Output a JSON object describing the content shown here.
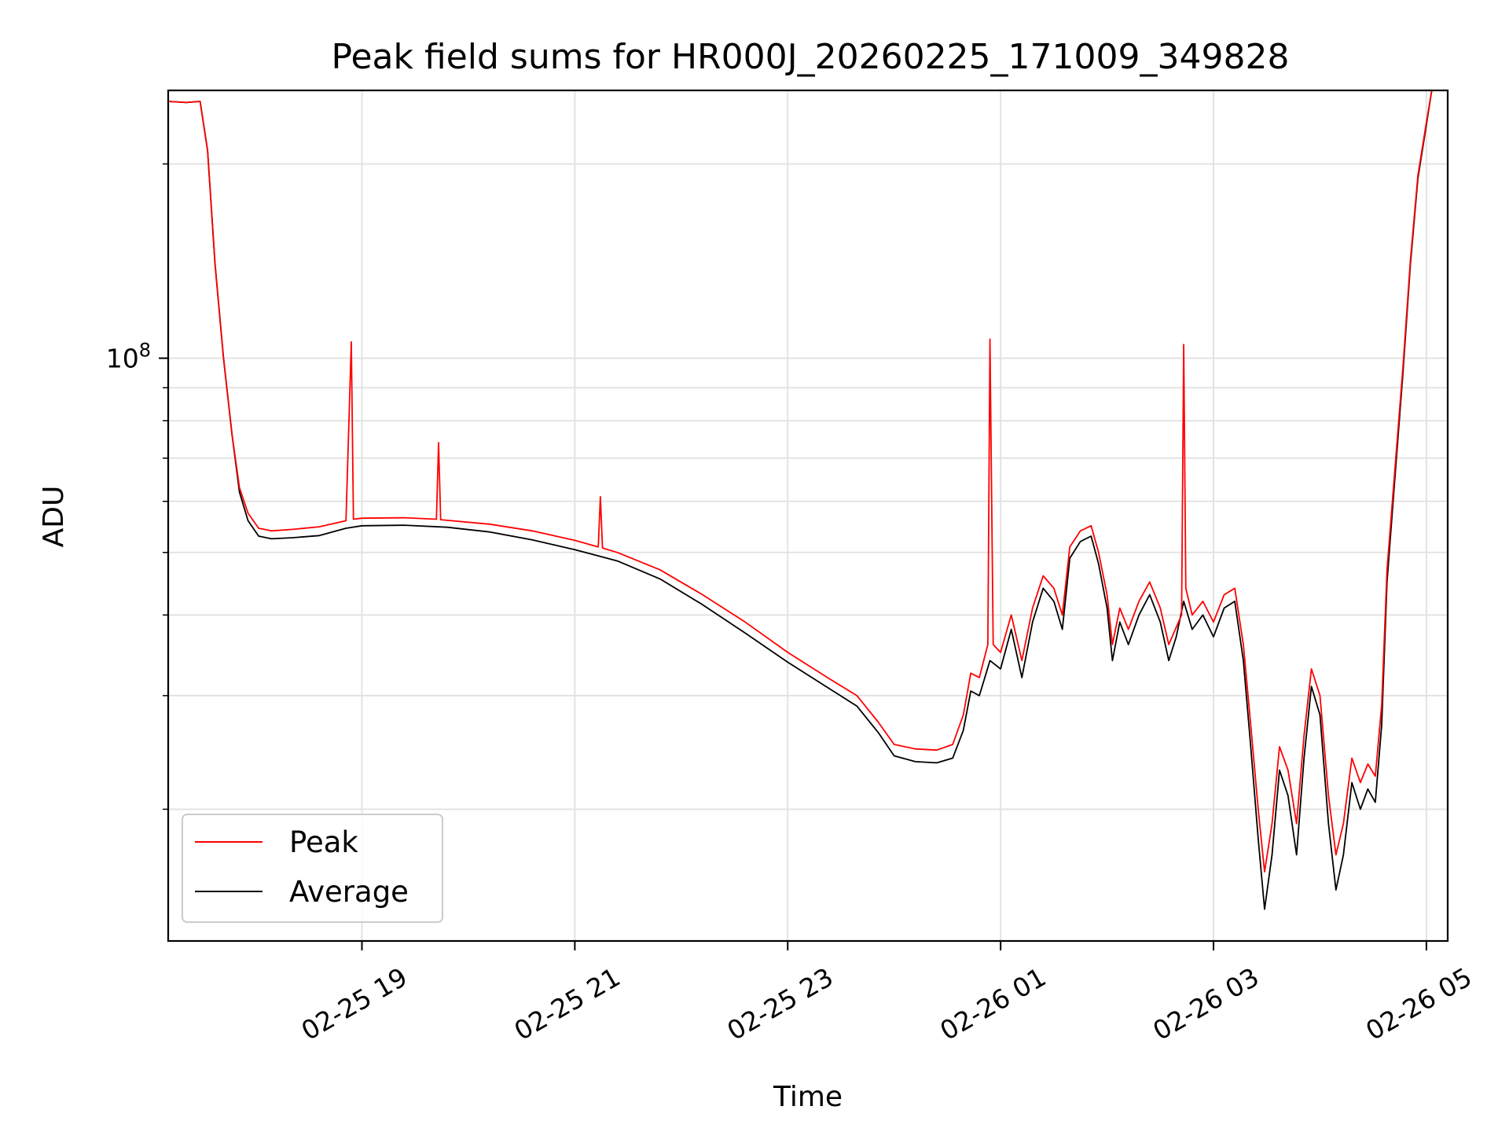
{
  "chart_data": {
    "type": "line",
    "title": "Peak field sums for HR000J_20260225_171009_349828",
    "xlabel": "Time",
    "ylabel": "ADU",
    "y_scale": "log",
    "ylim": [
      12500000,
      260000000
    ],
    "x_range_hours": [
      17.18,
      29.2
    ],
    "grid": true,
    "legend_position": "lower-left",
    "x_ticks": [
      {
        "hour": 19,
        "label": "02-25 19"
      },
      {
        "hour": 21,
        "label": "02-25 21"
      },
      {
        "hour": 23,
        "label": "02-25 23"
      },
      {
        "hour": 25,
        "label": "02-26 01"
      },
      {
        "hour": 27,
        "label": "02-26 03"
      },
      {
        "hour": 29,
        "label": "02-26 05"
      }
    ],
    "y_major_ticks": [
      {
        "value": 100000000,
        "base": "10",
        "exponent": "8"
      }
    ],
    "y_minor_ticks": [
      20000000,
      30000000,
      40000000,
      50000000,
      60000000,
      70000000,
      80000000,
      90000000,
      200000000
    ],
    "series": [
      {
        "name": "Average",
        "color": "#000000",
        "points": [
          [
            17.18,
            250000000
          ],
          [
            17.35,
            249000000
          ],
          [
            17.48,
            250000000
          ],
          [
            17.55,
            210000000
          ],
          [
            17.62,
            140000000
          ],
          [
            17.7,
            100000000
          ],
          [
            17.78,
            76000000
          ],
          [
            17.85,
            62000000
          ],
          [
            17.93,
            56000000
          ],
          [
            18.03,
            53000000
          ],
          [
            18.15,
            52500000
          ],
          [
            18.35,
            52700000
          ],
          [
            18.6,
            53100000
          ],
          [
            18.85,
            54500000
          ],
          [
            19.0,
            55000000
          ],
          [
            19.4,
            55100000
          ],
          [
            19.8,
            54700000
          ],
          [
            20.2,
            53800000
          ],
          [
            20.6,
            52300000
          ],
          [
            21.0,
            50500000
          ],
          [
            21.4,
            48500000
          ],
          [
            21.8,
            45500000
          ],
          [
            22.2,
            41500000
          ],
          [
            22.6,
            37500000
          ],
          [
            23.0,
            33800000
          ],
          [
            23.4,
            30700000
          ],
          [
            23.65,
            28900000
          ],
          [
            23.85,
            26300000
          ],
          [
            24.0,
            24200000
          ],
          [
            24.2,
            23700000
          ],
          [
            24.4,
            23600000
          ],
          [
            24.55,
            24000000
          ],
          [
            24.65,
            26500000
          ],
          [
            24.72,
            30500000
          ],
          [
            24.8,
            30000000
          ],
          [
            24.9,
            34000000
          ],
          [
            25.0,
            33000000
          ],
          [
            25.1,
            38000000
          ],
          [
            25.2,
            32000000
          ],
          [
            25.3,
            39000000
          ],
          [
            25.4,
            44000000
          ],
          [
            25.5,
            42000000
          ],
          [
            25.58,
            38000000
          ],
          [
            25.65,
            49000000
          ],
          [
            25.75,
            52000000
          ],
          [
            25.85,
            53000000
          ],
          [
            25.92,
            48000000
          ],
          [
            26.0,
            41000000
          ],
          [
            26.05,
            34000000
          ],
          [
            26.12,
            39000000
          ],
          [
            26.2,
            36000000
          ],
          [
            26.3,
            40000000
          ],
          [
            26.4,
            43000000
          ],
          [
            26.5,
            39000000
          ],
          [
            26.58,
            34000000
          ],
          [
            26.65,
            37000000
          ],
          [
            26.72,
            42000000
          ],
          [
            26.8,
            38000000
          ],
          [
            26.9,
            40000000
          ],
          [
            27.0,
            37000000
          ],
          [
            27.1,
            41000000
          ],
          [
            27.2,
            42000000
          ],
          [
            27.28,
            34000000
          ],
          [
            27.35,
            25000000
          ],
          [
            27.42,
            18000000
          ],
          [
            27.48,
            14000000
          ],
          [
            27.55,
            17000000
          ],
          [
            27.62,
            23000000
          ],
          [
            27.7,
            21000000
          ],
          [
            27.78,
            17000000
          ],
          [
            27.85,
            24000000
          ],
          [
            27.92,
            31000000
          ],
          [
            28.0,
            28000000
          ],
          [
            28.08,
            19000000
          ],
          [
            28.15,
            15000000
          ],
          [
            28.22,
            17000000
          ],
          [
            28.3,
            22000000
          ],
          [
            28.38,
            20000000
          ],
          [
            28.45,
            21500000
          ],
          [
            28.52,
            20500000
          ],
          [
            28.58,
            27000000
          ],
          [
            28.63,
            45000000
          ],
          [
            28.7,
            64000000
          ],
          [
            28.78,
            95000000
          ],
          [
            28.85,
            140000000
          ],
          [
            28.92,
            190000000
          ],
          [
            29.0,
            230000000
          ],
          [
            29.05,
            260000000
          ]
        ]
      },
      {
        "name": "Peak",
        "color": "#ff0000",
        "points": [
          [
            17.18,
            250000000
          ],
          [
            17.35,
            249000000
          ],
          [
            17.48,
            250000000
          ],
          [
            17.55,
            210000000
          ],
          [
            17.62,
            140000000
          ],
          [
            17.7,
            100000000
          ],
          [
            17.78,
            76000000
          ],
          [
            17.85,
            63000000
          ],
          [
            17.93,
            57500000
          ],
          [
            18.03,
            54500000
          ],
          [
            18.15,
            54000000
          ],
          [
            18.35,
            54300000
          ],
          [
            18.6,
            54800000
          ],
          [
            18.85,
            56000000
          ],
          [
            18.9,
            106000000
          ],
          [
            18.92,
            56300000
          ],
          [
            19.0,
            56500000
          ],
          [
            19.4,
            56600000
          ],
          [
            19.7,
            56300000
          ],
          [
            19.72,
            74000000
          ],
          [
            19.74,
            56200000
          ],
          [
            20.2,
            55300000
          ],
          [
            20.6,
            54000000
          ],
          [
            21.0,
            52200000
          ],
          [
            21.22,
            51000000
          ],
          [
            21.24,
            61000000
          ],
          [
            21.26,
            50800000
          ],
          [
            21.4,
            50000000
          ],
          [
            21.8,
            47000000
          ],
          [
            22.2,
            43000000
          ],
          [
            22.6,
            39000000
          ],
          [
            23.0,
            35000000
          ],
          [
            23.4,
            31800000
          ],
          [
            23.65,
            30000000
          ],
          [
            23.85,
            27300000
          ],
          [
            24.0,
            25200000
          ],
          [
            24.2,
            24800000
          ],
          [
            24.4,
            24700000
          ],
          [
            24.55,
            25200000
          ],
          [
            24.65,
            28000000
          ],
          [
            24.72,
            32500000
          ],
          [
            24.8,
            32000000
          ],
          [
            24.88,
            36000000
          ],
          [
            24.9,
            107000000
          ],
          [
            24.93,
            36000000
          ],
          [
            25.0,
            35000000
          ],
          [
            25.1,
            40000000
          ],
          [
            25.2,
            34000000
          ],
          [
            25.3,
            41000000
          ],
          [
            25.4,
            46000000
          ],
          [
            25.5,
            44000000
          ],
          [
            25.58,
            40000000
          ],
          [
            25.65,
            51000000
          ],
          [
            25.75,
            54000000
          ],
          [
            25.85,
            55000000
          ],
          [
            25.92,
            50000000
          ],
          [
            26.0,
            43000000
          ],
          [
            26.05,
            36000000
          ],
          [
            26.12,
            41000000
          ],
          [
            26.2,
            38000000
          ],
          [
            26.3,
            42000000
          ],
          [
            26.4,
            45000000
          ],
          [
            26.5,
            41000000
          ],
          [
            26.58,
            36000000
          ],
          [
            26.7,
            40000000
          ],
          [
            26.72,
            105000000
          ],
          [
            26.74,
            44000000
          ],
          [
            26.8,
            40000000
          ],
          [
            26.9,
            42000000
          ],
          [
            27.0,
            39000000
          ],
          [
            27.1,
            43000000
          ],
          [
            27.2,
            44000000
          ],
          [
            27.28,
            36000000
          ],
          [
            27.35,
            27000000
          ],
          [
            27.42,
            20000000
          ],
          [
            27.48,
            16000000
          ],
          [
            27.55,
            19000000
          ],
          [
            27.62,
            25000000
          ],
          [
            27.7,
            23000000
          ],
          [
            27.78,
            19000000
          ],
          [
            27.85,
            26000000
          ],
          [
            27.92,
            33000000
          ],
          [
            28.0,
            30000000
          ],
          [
            28.08,
            21000000
          ],
          [
            28.15,
            17000000
          ],
          [
            28.22,
            19000000
          ],
          [
            28.3,
            24000000
          ],
          [
            28.38,
            22000000
          ],
          [
            28.45,
            23500000
          ],
          [
            28.52,
            22500000
          ],
          [
            28.58,
            29000000
          ],
          [
            28.63,
            47000000
          ],
          [
            28.7,
            66000000
          ],
          [
            28.78,
            97000000
          ],
          [
            28.85,
            142000000
          ],
          [
            28.92,
            192000000
          ],
          [
            29.0,
            232000000
          ],
          [
            29.05,
            260000000
          ]
        ]
      }
    ],
    "legend": [
      {
        "name": "Peak",
        "color": "#ff0000"
      },
      {
        "name": "Average",
        "color": "#000000"
      }
    ]
  }
}
